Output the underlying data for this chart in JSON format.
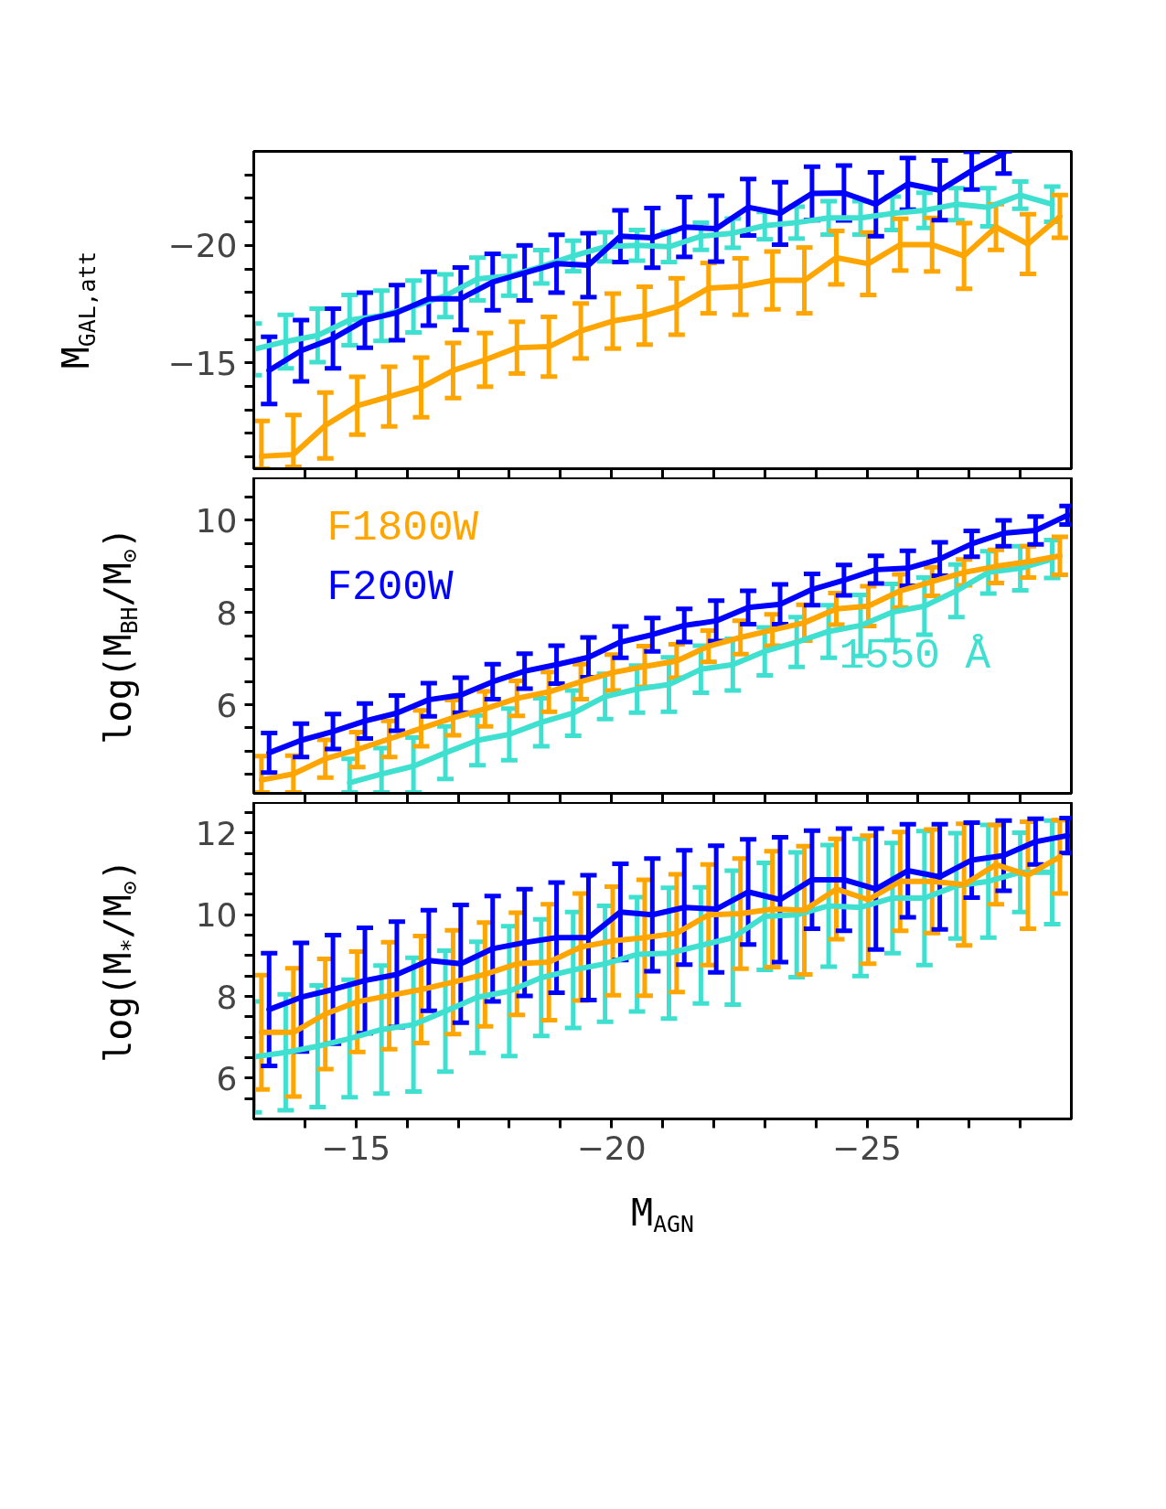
{
  "chart_data": [
    {
      "type": "line",
      "ylabel": "M$_{GAL,att}$",
      "xlim": [
        -13,
        -29
      ],
      "ylim": [
        -10.5,
        -24.0
      ],
      "tick_labels": "y",
      "xticks": [
        {
          "value": -14,
          "label": null
        },
        -15,
        {
          "value": -16,
          "label": null
        },
        {
          "value": -17,
          "label": null
        },
        {
          "value": -18,
          "label": null
        },
        {
          "value": -19,
          "label": null
        },
        -20,
        {
          "value": -21,
          "label": null
        },
        {
          "value": -22,
          "label": null
        },
        {
          "value": -23,
          "label": null
        },
        {
          "value": -24,
          "label": null
        },
        -25,
        {
          "value": -26,
          "label": null
        },
        {
          "value": -27,
          "label": null
        },
        {
          "value": -28,
          "label": null
        }
      ],
      "yticks": [
        {
          "value": -11,
          "label": null
        },
        {
          "value": -12,
          "label": null
        },
        {
          "value": -13,
          "label": null
        },
        {
          "value": -14,
          "label": null
        },
        -15,
        {
          "value": -16,
          "label": null
        },
        {
          "value": -17,
          "label": null
        },
        {
          "value": -18,
          "label": null
        },
        {
          "value": -19,
          "label": null
        },
        -20,
        {
          "value": -21,
          "label": null
        },
        {
          "value": -22,
          "label": null
        },
        {
          "value": -23,
          "label": null
        }
      ],
      "series": [
        {
          "color": "#40e0d0",
          "x": [
            -13,
            -13.625,
            -14.25,
            -14.875,
            -15.5,
            -16.125,
            -16.75,
            -17.375,
            -18,
            -18.625,
            -19.25,
            -19.875,
            -20.5,
            -21.125,
            -21.75,
            -22.375,
            -23,
            -23.625,
            -24.25,
            -24.875,
            -25.5,
            -26.125,
            -26.75,
            -27.375,
            -28,
            -28.625
          ],
          "values": [
            -15.58,
            -15.91,
            -16.17,
            -16.82,
            -17.01,
            -17.4,
            -17.86,
            -18.57,
            -18.7,
            -19.09,
            -19.55,
            -19.94,
            -20.0,
            -19.94,
            -20.39,
            -20.52,
            -20.84,
            -20.97,
            -21.17,
            -21.17,
            -21.36,
            -21.49,
            -21.75,
            -21.62,
            -22.14,
            -21.75
          ],
          "errors": [
            1.1,
            1.14,
            1.14,
            1.07,
            1.07,
            1.1,
            0.91,
            0.91,
            0.84,
            0.71,
            0.65,
            0.62,
            0.65,
            0.65,
            0.58,
            0.62,
            0.58,
            0.68,
            0.71,
            0.71,
            0.71,
            0.75,
            0.68,
            0.81,
            0.58,
            0.75
          ]
        },
        {
          "color": "#ffa500",
          "x": [
            -13.15,
            -13.775,
            -14.4,
            -15.025,
            -15.65,
            -16.275,
            -16.9,
            -17.525,
            -18.15,
            -18.775,
            -19.4,
            -20.025,
            -20.65,
            -21.275,
            -21.9,
            -22.525,
            -23.15,
            -23.775,
            -24.4,
            -25.025,
            -25.65,
            -26.275,
            -26.9,
            -27.525,
            -28.15,
            -28.775
          ],
          "values": [
            -11.03,
            -11.1,
            -12.34,
            -13.18,
            -13.57,
            -13.96,
            -14.68,
            -15.13,
            -15.65,
            -15.69,
            -16.36,
            -16.78,
            -17.01,
            -17.4,
            -18.18,
            -18.25,
            -18.51,
            -18.51,
            -19.48,
            -19.22,
            -20.03,
            -20.03,
            -19.55,
            -20.78,
            -20.06,
            -21.23
          ],
          "errors": [
            [
              -12.53,
              -10.5
            ],
            [
              -12.79,
              -10.58
            ],
            1.4,
            1.23,
            1.27,
            1.27,
            1.17,
            1.14,
            1.1,
            1.27,
            1.17,
            1.17,
            1.23,
            1.2,
            1.07,
            1.2,
            1.23,
            1.4,
            1.14,
            1.33,
            1.1,
            1.14,
            1.4,
            0.97,
            1.27,
            0.91
          ]
        },
        {
          "color": "#0000ff",
          "x": [
            -13.3,
            -13.925,
            -14.55,
            -15.175,
            -15.8,
            -16.425,
            -17.05,
            -17.675,
            -18.3,
            -18.925,
            -19.55,
            -20.175,
            -20.8,
            -21.425,
            -22.05,
            -22.675,
            -23.3,
            -23.925,
            -24.55,
            -25.175,
            -25.8,
            -26.425,
            -27.05,
            -27.675
          ],
          "values": [
            -14.68,
            -15.52,
            -16.04,
            -16.82,
            -17.14,
            -17.73,
            -17.73,
            -18.44,
            -18.83,
            -19.22,
            -19.16,
            -20.39,
            -20.32,
            -20.78,
            -20.71,
            -21.62,
            -21.36,
            -22.21,
            -22.23,
            -21.75,
            -22.62,
            -22.34,
            -23.18,
            -23.9
          ],
          "errors": [
            1.43,
            1.3,
            1.27,
            1.17,
            1.17,
            1.14,
            1.33,
            1.2,
            1.17,
            1.23,
            1.36,
            1.1,
            1.27,
            1.27,
            1.4,
            1.2,
            1.33,
            1.14,
            1.17,
            1.36,
            1.1,
            1.27,
            0.8,
            [
              -24.0,
              -23.06
            ]
          ]
        }
      ]
    },
    {
      "type": "line",
      "ylabel": "log(M$_{BH}$/M$_{⊙}$)",
      "xlim": [
        -13,
        -29
      ],
      "ylim": [
        4.08,
        10.92
      ],
      "tick_labels": "y",
      "xticks": [
        {
          "value": -14,
          "label": null
        },
        -15,
        {
          "value": -16,
          "label": null
        },
        {
          "value": -17,
          "label": null
        },
        {
          "value": -18,
          "label": null
        },
        {
          "value": -19,
          "label": null
        },
        -20,
        {
          "value": -21,
          "label": null
        },
        {
          "value": -22,
          "label": null
        },
        {
          "value": -23,
          "label": null
        },
        {
          "value": -24,
          "label": null
        },
        -25,
        {
          "value": -26,
          "label": null
        },
        {
          "value": -27,
          "label": null
        },
        {
          "value": -28,
          "label": null
        }
      ],
      "yticks": [
        {
          "value": 4.5,
          "label": null
        },
        {
          "value": 5,
          "label": null
        },
        {
          "value": 5.5,
          "label": null
        },
        6,
        {
          "value": 6.5,
          "label": null
        },
        {
          "value": 7,
          "label": null
        },
        {
          "value": 7.5,
          "label": null
        },
        8,
        {
          "value": 8.5,
          "label": null
        },
        {
          "value": 9,
          "label": null
        },
        {
          "value": 9.5,
          "label": null
        },
        10,
        {
          "value": 10.5,
          "label": null
        }
      ],
      "series": [
        {
          "name": "1550 Å",
          "color": "#40e0d0",
          "x": [
            -14.875,
            -15.5,
            -16.125,
            -16.75,
            -17.375,
            -18,
            -18.625,
            -19.25,
            -19.875,
            -20.5,
            -21.125,
            -21.75,
            -22.375,
            -23,
            -23.625,
            -24.25,
            -24.875,
            -25.5,
            -26.125,
            -26.75,
            -27.375,
            -28,
            -28.625
          ],
          "values": [
            4.31,
            4.5,
            4.67,
            4.96,
            5.23,
            5.36,
            5.62,
            5.82,
            6.18,
            6.34,
            6.44,
            6.77,
            6.87,
            7.16,
            7.36,
            7.59,
            7.72,
            8.01,
            8.14,
            8.47,
            8.87,
            8.96,
            9.16
          ],
          "errors": [
            [
              4.1,
              4.83
            ],
            [
              4.1,
              5.06
            ],
            [
              4.1,
              5.29
            ],
            0.57,
            0.54,
            0.56,
            0.52,
            0.49,
            0.49,
            0.51,
            0.59,
            0.51,
            0.56,
            0.52,
            0.54,
            0.57,
            0.66,
            0.61,
            0.62,
            0.57,
            0.46,
            0.48,
            0.41
          ]
        },
        {
          "name": "F1800W",
          "color": "#ffa500",
          "x": [
            -13.15,
            -13.775,
            -14.4,
            -15.025,
            -15.65,
            -16.275,
            -16.9,
            -17.525,
            -18.15,
            -18.775,
            -19.4,
            -20.025,
            -20.65,
            -21.275,
            -21.9,
            -22.525,
            -23.15,
            -23.775,
            -24.4,
            -25.025,
            -25.65,
            -26.275,
            -26.9,
            -27.525,
            -28.15,
            -28.775
          ],
          "values": [
            4.37,
            4.5,
            4.83,
            5.03,
            5.26,
            5.49,
            5.72,
            5.91,
            6.14,
            6.28,
            6.5,
            6.7,
            6.83,
            6.95,
            7.27,
            7.46,
            7.62,
            7.78,
            8.08,
            8.14,
            8.47,
            8.67,
            8.87,
            9.0,
            9.1,
            9.23
          ],
          "errors": [
            [
              4.1,
              4.89
            ],
            0.4,
            0.41,
            0.38,
            0.39,
            0.39,
            0.38,
            0.38,
            0.38,
            0.43,
            0.38,
            0.39,
            0.44,
            0.36,
            0.34,
            0.36,
            0.34,
            0.39,
            0.34,
            0.43,
            0.36,
            0.31,
            0.28,
            0.36,
            0.34,
            0.41
          ]
        },
        {
          "name": "F200W",
          "color": "#0000ff",
          "x": [
            -13.3,
            -13.925,
            -14.55,
            -15.175,
            -15.8,
            -16.425,
            -17.05,
            -17.675,
            -18.3,
            -18.925,
            -19.55,
            -20.175,
            -20.8,
            -21.425,
            -22.05,
            -22.675,
            -23.3,
            -23.925,
            -24.55,
            -25.175,
            -25.8,
            -26.425,
            -27.05,
            -27.675,
            -28.3,
            -28.925
          ],
          "values": [
            4.96,
            5.23,
            5.42,
            5.65,
            5.82,
            6.11,
            6.21,
            6.5,
            6.73,
            6.87,
            7.03,
            7.36,
            7.52,
            7.72,
            7.82,
            8.11,
            8.18,
            8.5,
            8.7,
            8.93,
            8.96,
            9.16,
            9.49,
            9.72,
            9.78,
            10.11
          ],
          "errors": [
            0.43,
            0.36,
            0.38,
            0.38,
            0.38,
            0.36,
            0.38,
            0.38,
            0.38,
            0.41,
            0.43,
            0.34,
            0.36,
            0.36,
            0.44,
            0.36,
            0.43,
            0.34,
            0.33,
            0.3,
            0.38,
            0.36,
            0.28,
            0.28,
            0.3,
            0.2
          ]
        }
      ]
    },
    {
      "type": "line",
      "xlabel": "M$_{AGN}$",
      "ylabel": "log(M$_{*}$/M$_{⊙}$)",
      "xlim": [
        -13,
        -29
      ],
      "ylim": [
        5.0,
        12.75
      ],
      "xticks": [
        {
          "value": -14,
          "label": null
        },
        -15,
        {
          "value": -16,
          "label": null
        },
        {
          "value": -17,
          "label": null
        },
        {
          "value": -18,
          "label": null
        },
        {
          "value": -19,
          "label": null
        },
        -20,
        {
          "value": -21,
          "label": null
        },
        {
          "value": -22,
          "label": null
        },
        {
          "value": -23,
          "label": null
        },
        {
          "value": -24,
          "label": null
        },
        -25,
        {
          "value": -26,
          "label": null
        },
        {
          "value": -27,
          "label": null
        },
        {
          "value": -28,
          "label": null
        }
      ],
      "yticks": [
        {
          "value": 5.5,
          "label": null
        },
        6,
        {
          "value": 6.5,
          "label": null
        },
        {
          "value": 7,
          "label": null
        },
        {
          "value": 7.5,
          "label": null
        },
        8,
        {
          "value": 8.5,
          "label": null
        },
        {
          "value": 9,
          "label": null
        },
        {
          "value": 9.5,
          "label": null
        },
        10,
        {
          "value": 10.5,
          "label": null
        },
        {
          "value": 11,
          "label": null
        },
        {
          "value": 11.5,
          "label": null
        },
        12,
        {
          "value": 12.5,
          "label": null
        }
      ],
      "series": [
        {
          "color": "#40e0d0",
          "x": [
            -13,
            -13.625,
            -14.25,
            -14.875,
            -15.5,
            -16.125,
            -16.75,
            -17.375,
            -18,
            -18.625,
            -19.25,
            -19.875,
            -20.5,
            -21.125,
            -21.75,
            -22.375,
            -23,
            -23.625,
            -24.25,
            -24.875,
            -25.5,
            -26.125,
            -26.75,
            -27.375,
            -28,
            -28.625
          ],
          "values": [
            6.52,
            6.63,
            6.78,
            6.97,
            7.19,
            7.31,
            7.64,
            7.98,
            8.13,
            8.46,
            8.65,
            8.8,
            9.03,
            9.06,
            9.25,
            9.44,
            9.96,
            10.0,
            10.22,
            10.18,
            10.41,
            10.41,
            10.71,
            10.82,
            11.04,
            11.04
          ],
          "errors": [
            1.36,
            1.42,
            1.49,
            1.44,
            1.57,
            1.64,
            1.48,
            1.36,
            1.59,
            1.43,
            1.42,
            1.42,
            1.4,
            1.6,
            1.42,
            1.64,
            1.31,
            1.53,
            1.49,
            1.68,
            1.35,
            1.64,
            1.29,
            1.38,
            0.97,
            1.27
          ]
        },
        {
          "color": "#ffa500",
          "x": [
            -13.15,
            -13.775,
            -14.4,
            -15.025,
            -15.65,
            -16.275,
            -16.9,
            -17.525,
            -18.15,
            -18.775,
            -19.4,
            -20.025,
            -20.65,
            -21.275,
            -21.9,
            -22.525,
            -23.15,
            -23.775,
            -24.4,
            -25.025,
            -25.65,
            -26.275,
            -26.9,
            -27.525,
            -28.15,
            -28.775
          ],
          "values": [
            7.12,
            7.12,
            7.57,
            7.87,
            8.02,
            8.17,
            8.35,
            8.54,
            8.8,
            8.84,
            9.21,
            9.36,
            9.44,
            9.55,
            10.0,
            10.03,
            10.14,
            10.11,
            10.63,
            10.37,
            10.82,
            10.82,
            10.74,
            11.23,
            10.97,
            11.42
          ],
          "errors": [
            1.4,
            1.57,
            1.35,
            1.23,
            1.31,
            1.31,
            1.27,
            1.27,
            1.25,
            1.42,
            1.31,
            1.33,
            1.42,
            1.44,
            1.23,
            1.35,
            1.42,
            1.57,
            1.23,
            1.57,
            1.21,
            1.27,
            1.49,
            0.97,
            1.31,
            0.9
          ]
        },
        {
          "color": "#0000ff",
          "x": [
            -13.3,
            -13.925,
            -14.55,
            -15.175,
            -15.8,
            -16.425,
            -17.05,
            -17.675,
            -18.3,
            -18.925,
            -19.55,
            -20.175,
            -20.8,
            -21.425,
            -22.05,
            -22.675,
            -23.3,
            -23.925,
            -24.55,
            -25.175,
            -25.8,
            -26.425,
            -27.05,
            -27.675,
            -28.3,
            -28.925
          ],
          "values": [
            7.68,
            7.98,
            8.17,
            8.39,
            8.54,
            8.88,
            8.8,
            9.17,
            9.32,
            9.44,
            9.44,
            10.07,
            10.0,
            10.18,
            10.14,
            10.56,
            10.37,
            10.86,
            10.86,
            10.63,
            11.08,
            10.93,
            11.34,
            11.45,
            11.79,
            11.94
          ],
          "errors": [
            1.38,
            1.33,
            1.33,
            1.29,
            1.29,
            1.23,
            1.44,
            1.29,
            1.31,
            1.35,
            1.53,
            1.18,
            1.38,
            1.4,
            1.55,
            1.29,
            1.53,
            1.2,
            1.25,
            1.48,
            1.14,
            1.29,
            0.92,
            0.86,
            0.56,
            0.43
          ]
        }
      ]
    }
  ]
}
